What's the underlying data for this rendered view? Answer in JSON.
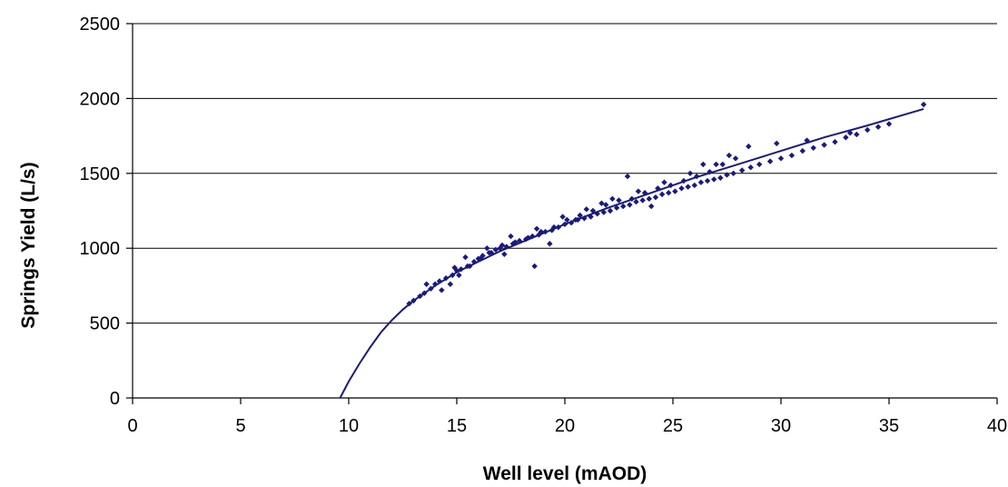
{
  "chart_data": {
    "type": "scatter",
    "title": "",
    "xlabel": "Well level (mAOD)",
    "ylabel": "Springs Yield (L/s)",
    "xlim": [
      0,
      40
    ],
    "ylim": [
      0,
      2500
    ],
    "x_ticks": [
      "0",
      "5",
      "10",
      "15",
      "20",
      "25",
      "30",
      "35",
      "40"
    ],
    "y_ticks": [
      "0",
      "500",
      "1000",
      "1500",
      "2000",
      "2500"
    ],
    "grid": "horizontal",
    "legend": "none",
    "colors": {
      "series": "#1a1a7e",
      "grid": "#000000",
      "axis": "#000000"
    },
    "series": [
      {
        "kind": "points",
        "x": [
          12.8,
          13.0,
          13.3,
          13.5,
          13.8,
          14.0,
          14.2,
          14.5,
          14.8,
          15.0,
          15.2,
          15.5,
          15.8,
          16.0,
          16.2,
          16.5,
          16.8,
          17.0,
          17.3,
          17.6,
          17.9,
          18.2,
          18.5,
          18.8,
          19.1,
          19.4,
          19.7,
          20.0,
          20.3,
          20.6,
          20.9,
          21.2,
          21.5,
          21.8,
          22.1,
          22.4,
          22.7,
          23.0,
          23.3,
          23.6,
          23.9,
          24.2,
          24.5,
          24.8,
          25.1,
          25.4,
          25.7,
          26.0,
          26.3,
          26.6,
          26.9,
          27.2,
          27.5,
          27.8,
          28.2,
          28.6,
          29.0,
          29.5,
          30.0,
          30.5,
          31.0,
          31.5,
          32.0,
          32.5,
          33.0,
          33.5,
          34.0,
          34.5,
          35.0,
          36.6,
          14.3,
          14.7,
          15.1,
          15.6,
          16.1,
          16.6,
          17.1,
          17.7,
          18.3,
          18.9,
          19.5,
          20.1,
          20.7,
          21.3,
          21.9,
          22.5,
          23.1,
          23.7,
          24.3,
          24.9,
          25.5,
          26.1,
          26.7,
          27.3,
          27.9,
          13.6,
          14.9,
          16.4,
          17.5,
          18.7,
          19.9,
          21.0,
          22.2,
          23.4,
          24.6,
          25.8,
          27.0,
          18.6,
          21.7,
          22.9,
          26.4,
          27.6,
          28.5,
          29.8,
          31.2,
          33.2,
          17.2,
          15.4,
          20.5,
          24.0,
          19.3
        ],
        "y": [
          630,
          650,
          680,
          700,
          730,
          760,
          780,
          800,
          820,
          850,
          860,
          880,
          910,
          930,
          950,
          970,
          990,
          1000,
          1010,
          1030,
          1050,
          1060,
          1080,
          1090,
          1110,
          1120,
          1140,
          1160,
          1170,
          1190,
          1200,
          1210,
          1230,
          1240,
          1250,
          1270,
          1280,
          1290,
          1310,
          1320,
          1330,
          1340,
          1360,
          1370,
          1380,
          1400,
          1410,
          1420,
          1440,
          1450,
          1460,
          1470,
          1490,
          1500,
          1520,
          1540,
          1560,
          1580,
          1600,
          1620,
          1650,
          1670,
          1690,
          1710,
          1740,
          1760,
          1790,
          1810,
          1830,
          1960,
          720,
          760,
          820,
          880,
          930,
          970,
          1020,
          1040,
          1070,
          1110,
          1140,
          1190,
          1220,
          1250,
          1290,
          1320,
          1330,
          1370,
          1400,
          1420,
          1450,
          1480,
          1510,
          1560,
          1600,
          760,
          870,
          1000,
          1080,
          1130,
          1210,
          1260,
          1330,
          1380,
          1440,
          1500,
          1560,
          880,
          1300,
          1480,
          1560,
          1620,
          1680,
          1700,
          1720,
          1770,
          960,
          940,
          1190,
          1280,
          1030
        ]
      },
      {
        "kind": "trendline",
        "x": [
          9.6,
          10.0,
          10.5,
          11.0,
          11.5,
          12.0,
          12.5,
          13.0,
          14.0,
          15.0,
          16.0,
          17.0,
          18.0,
          19.0,
          20.0,
          22.0,
          24.0,
          26.0,
          28.0,
          30.0,
          32.0,
          34.0,
          36.6
        ],
        "y": [
          0,
          110,
          230,
          340,
          440,
          520,
          590,
          650,
          750,
          840,
          910,
          980,
          1040,
          1100,
          1160,
          1270,
          1370,
          1470,
          1560,
          1650,
          1740,
          1820,
          1930
        ]
      }
    ]
  }
}
